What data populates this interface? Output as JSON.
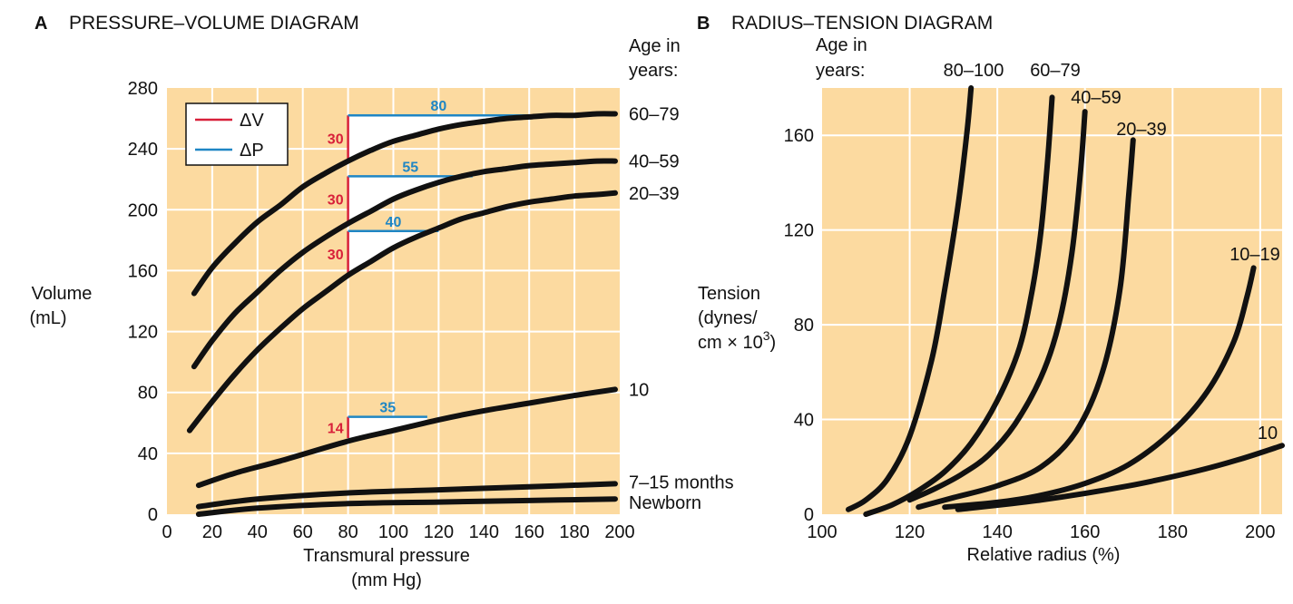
{
  "colors": {
    "plot_bg": "#fcdaa0",
    "grid": "#ffffff",
    "curve": "#111111",
    "delta_v": "#d8203a",
    "delta_p": "#1f86c4"
  },
  "chart_data": [
    {
      "type": "line",
      "letter": "A",
      "title": "PRESSURE–VOLUME DIAGRAM",
      "xlabel": [
        "Transmural pressure",
        "(mm Hg)"
      ],
      "ylabel": [
        "Volume",
        "(mL)"
      ],
      "xlim": [
        0,
        200
      ],
      "ylim": [
        0,
        280
      ],
      "xticks": [
        0,
        20,
        40,
        60,
        80,
        100,
        120,
        140,
        160,
        180,
        200
      ],
      "yticks": [
        0,
        40,
        80,
        120,
        160,
        200,
        240,
        280
      ],
      "grid": true,
      "series_header": [
        "Age in",
        "years:"
      ],
      "legend": {
        "position": "top-left",
        "items": [
          {
            "label": "ΔV",
            "color": "#d8203a"
          },
          {
            "label": "ΔP",
            "color": "#1f86c4"
          }
        ]
      },
      "series": [
        {
          "name": "60–79",
          "x": [
            12,
            20,
            30,
            40,
            50,
            60,
            70,
            80,
            90,
            100,
            110,
            120,
            130,
            140,
            150,
            160,
            170,
            180,
            190,
            198
          ],
          "y": [
            145,
            162,
            178,
            192,
            203,
            215,
            224,
            232,
            239,
            245,
            249,
            253,
            256,
            258,
            260,
            261,
            262,
            262,
            263,
            263
          ]
        },
        {
          "name": "40–59",
          "x": [
            12,
            20,
            30,
            40,
            50,
            60,
            70,
            80,
            90,
            100,
            110,
            120,
            130,
            140,
            150,
            160,
            170,
            180,
            190,
            198
          ],
          "y": [
            97,
            114,
            132,
            146,
            160,
            172,
            182,
            191,
            199,
            207,
            213,
            218,
            222,
            225,
            227,
            229,
            230,
            231,
            232,
            232
          ]
        },
        {
          "name": "20–39",
          "x": [
            10,
            20,
            30,
            40,
            50,
            60,
            70,
            80,
            90,
            100,
            110,
            120,
            130,
            140,
            150,
            160,
            170,
            180,
            190,
            198
          ],
          "y": [
            55,
            74,
            92,
            108,
            122,
            135,
            146,
            157,
            166,
            175,
            182,
            188,
            194,
            198,
            202,
            205,
            207,
            209,
            210,
            211
          ]
        },
        {
          "name": "10",
          "x": [
            14,
            30,
            50,
            80,
            100,
            120,
            140,
            160,
            180,
            198
          ],
          "y": [
            19,
            27,
            35,
            48,
            55,
            62,
            68,
            73,
            78,
            82
          ]
        },
        {
          "name": "7–15 months",
          "x": [
            14,
            40,
            80,
            120,
            160,
            198
          ],
          "y": [
            5,
            10,
            14,
            16,
            18,
            20
          ]
        },
        {
          "name": "Newborn",
          "x": [
            14,
            40,
            80,
            120,
            160,
            198
          ],
          "y": [
            0,
            4,
            7,
            8,
            9,
            10
          ]
        }
      ],
      "compliance_triangles": [
        {
          "x0": 80,
          "v_low": 232,
          "dv": 30,
          "dp": 80,
          "dv_label": "30",
          "dp_label": "80"
        },
        {
          "x0": 80,
          "v_low": 192,
          "dv": 30,
          "dp": 55,
          "dv_label": "30",
          "dp_label": "55"
        },
        {
          "x0": 80,
          "v_low": 156,
          "dv": 30,
          "dp": 40,
          "dv_label": "30",
          "dp_label": "40"
        },
        {
          "x0": 80,
          "v_low": 50,
          "dv": 14,
          "dp": 35,
          "dv_label": "14",
          "dp_label": "35"
        }
      ]
    },
    {
      "type": "line",
      "letter": "B",
      "title": "RADIUS–TENSION DIAGRAM",
      "xlabel": [
        "Relative radius (%)"
      ],
      "ylabel": [
        "Tension",
        "(dynes/",
        "cm × 10",
        "3",
        ")"
      ],
      "xlim": [
        100,
        205
      ],
      "ylim": [
        0,
        180
      ],
      "xticks": [
        100,
        120,
        140,
        160,
        180,
        200
      ],
      "yticks": [
        0,
        40,
        80,
        120,
        160
      ],
      "grid": true,
      "series_header": [
        "Age in",
        "years:"
      ],
      "series": [
        {
          "name": "80–100",
          "x": [
            106,
            110,
            115,
            120,
            125,
            128,
            131,
            133,
            134
          ],
          "y": [
            2,
            6,
            15,
            33,
            65,
            95,
            130,
            160,
            180
          ]
        },
        {
          "name": "60–79",
          "x": [
            110,
            116,
            122,
            128,
            134,
            140,
            145,
            148,
            150,
            151.5,
            152.5
          ],
          "y": [
            0,
            4,
            10,
            18,
            30,
            48,
            70,
            95,
            120,
            150,
            176
          ]
        },
        {
          "name": "40–59",
          "x": [
            120,
            126,
            132,
            138,
            144,
            150,
            154,
            157,
            159,
            160
          ],
          "y": [
            6,
            11,
            17,
            25,
            38,
            58,
            80,
            110,
            145,
            170
          ]
        },
        {
          "name": "20–39",
          "x": [
            122,
            130,
            140,
            150,
            158,
            164,
            168,
            170,
            171
          ],
          "y": [
            3,
            7,
            12,
            20,
            35,
            60,
            95,
            135,
            158
          ]
        },
        {
          "name": "10–19",
          "x": [
            128,
            140,
            150,
            160,
            170,
            180,
            188,
            194,
            197,
            198.5
          ],
          "y": [
            3,
            5,
            8,
            13,
            21,
            35,
            52,
            73,
            92,
            104
          ]
        },
        {
          "name": "10",
          "x": [
            131,
            150,
            170,
            185,
            195,
            205
          ],
          "y": [
            2,
            6,
            12,
            18,
            23,
            29
          ]
        }
      ]
    }
  ]
}
